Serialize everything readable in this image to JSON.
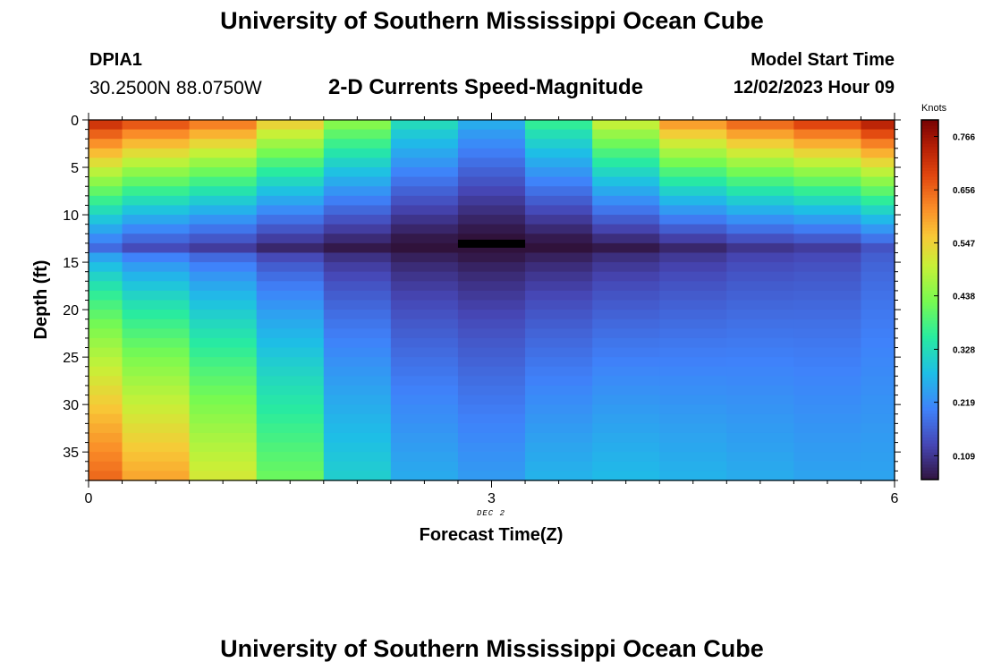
{
  "header": {
    "title": "University of Southern Mississippi Ocean Cube",
    "station_id": "DPIA1",
    "coordinates": "30.2500N  88.0750W",
    "subtitle": "2-D Currents Speed-Magnitude",
    "model_start_label": "Model Start Time",
    "model_start_value": "12/02/2023 Hour 09"
  },
  "footer": {
    "title": "University of Southern Mississippi Ocean Cube"
  },
  "chart_data": {
    "type": "heatmap",
    "title": "2-D Currents Speed-Magnitude",
    "xlabel": "Forecast Time(Z)",
    "ylabel": "Depth (ft)",
    "x_date_label": "DEC 2",
    "xlim": [
      0,
      6
    ],
    "ylim": [
      0,
      38
    ],
    "x_ticks": [
      0,
      3,
      6
    ],
    "y_ticks": [
      0,
      5,
      10,
      15,
      20,
      25,
      30,
      35
    ],
    "colorbar": {
      "label": "Knots",
      "ticks": [
        0.766,
        0.656,
        0.547,
        0.438,
        0.328,
        0.219,
        0.109
      ],
      "tick_labels": [
        "0.766",
        "0.656",
        "0.547",
        "0.438",
        "0.328",
        "0.219",
        "0.109"
      ],
      "range": [
        0.06,
        0.8
      ]
    },
    "columns": [
      {
        "x_start": 0,
        "x_end": 0.25,
        "surface": 0.74,
        "trough": 0.18,
        "bottom": 0.66
      },
      {
        "x_start": 0.25,
        "x_end": 0.75,
        "surface": 0.7,
        "trough": 0.14,
        "bottom": 0.6
      },
      {
        "x_start": 0.75,
        "x_end": 1.25,
        "surface": 0.66,
        "trough": 0.12,
        "bottom": 0.52
      },
      {
        "x_start": 1.25,
        "x_end": 1.75,
        "surface": 0.57,
        "trough": 0.09,
        "bottom": 0.42
      },
      {
        "x_start": 1.75,
        "x_end": 2.25,
        "surface": 0.46,
        "trough": 0.07,
        "bottom": 0.31
      },
      {
        "x_start": 2.25,
        "x_end": 2.75,
        "surface": 0.34,
        "trough": 0.05,
        "bottom": 0.26
      },
      {
        "x_start": 2.75,
        "x_end": 3.25,
        "surface": 0.27,
        "trough": 0.04,
        "bottom": 0.24
      },
      {
        "x_start": 3.25,
        "x_end": 3.75,
        "surface": 0.38,
        "trough": 0.05,
        "bottom": 0.27
      },
      {
        "x_start": 3.75,
        "x_end": 4.25,
        "surface": 0.52,
        "trough": 0.07,
        "bottom": 0.28
      },
      {
        "x_start": 4.25,
        "x_end": 4.75,
        "surface": 0.63,
        "trough": 0.09,
        "bottom": 0.27
      },
      {
        "x_start": 4.75,
        "x_end": 5.25,
        "surface": 0.68,
        "trough": 0.11,
        "bottom": 0.26
      },
      {
        "x_start": 5.25,
        "x_end": 5.75,
        "surface": 0.72,
        "trough": 0.12,
        "bottom": 0.25
      },
      {
        "x_start": 5.75,
        "x_end": 6.0,
        "surface": 0.77,
        "trough": 0.15,
        "bottom": 0.25
      }
    ],
    "trough_depth_ft": 13.5,
    "black_marker": {
      "x_start": 2.75,
      "x_end": 3.25,
      "depth_ft": 13
    }
  }
}
